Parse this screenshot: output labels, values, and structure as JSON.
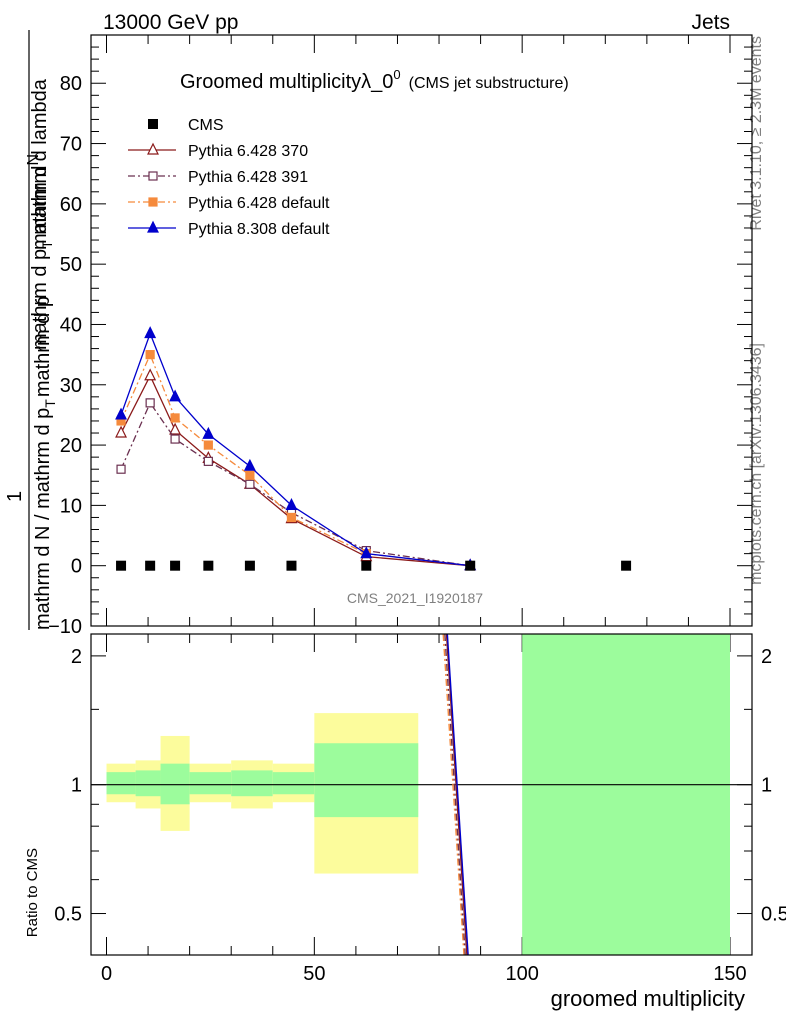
{
  "header": {
    "left": "13000 GeV pp",
    "right": "Jets"
  },
  "side": {
    "rivet": "Rivet 3.1.10, ≥ 2.3M events",
    "mcplots": "mcplots.cern.ch [arXiv:1306.3436]"
  },
  "chart_data": {
    "type": "line",
    "title": "Groomed multiplicity",
    "title_lambda": "λ_0",
    "title_sup": "0",
    "subtitle": "(CMS jet substructure)",
    "analysis_id": "CMS_2021_I1920187",
    "xlabel": "groomed multiplicity",
    "ylabel_num": "1",
    "ylabel_den": "mathrm d N / mathrm d p",
    "ylabel_den_sub": "T",
    "ylabel_den_tail": "mathrm d p",
    "ylabel_upper_text": "mathrm d",
    "ylabel_upper_end": "N",
    "ylabel_mid_text": "mathrm d p",
    "ylabel_mid_sub": "T",
    "ylabel_mid_tail": " mathrm d lambda",
    "ratio_ylabel": "Ratio to CMS",
    "xlim": [
      -3,
      150
    ],
    "ylim": [
      -10,
      88
    ],
    "ratio_ylim": [
      0.4,
      2.25
    ],
    "x_ticks": [
      "0",
      "50",
      "100",
      "150"
    ],
    "y_ticks": [
      "−10",
      "0",
      "10",
      "20",
      "30",
      "40",
      "50",
      "60",
      "70",
      "80"
    ],
    "ratio_ticks": [
      "0.5",
      "1",
      "2"
    ],
    "bins": [
      {
        "lo": 0,
        "hi": 7,
        "x": 3.5
      },
      {
        "lo": 7,
        "hi": 13,
        "x": 10.5
      },
      {
        "lo": 13,
        "hi": 20,
        "x": 16.5
      },
      {
        "lo": 20,
        "hi": 30,
        "x": 24.5
      },
      {
        "lo": 30,
        "hi": 40,
        "x": 34.5
      },
      {
        "lo": 40,
        "hi": 50,
        "x": 44.5
      },
      {
        "lo": 50,
        "hi": 75,
        "x": 62.5
      },
      {
        "lo": 75,
        "hi": 100,
        "x": 87.5
      },
      {
        "lo": 100,
        "hi": 150,
        "x": 125
      }
    ],
    "cms": {
      "name": "CMS",
      "color": "#000000",
      "values": [
        0,
        0,
        0,
        0,
        0,
        0,
        0,
        0,
        0
      ]
    },
    "series": [
      {
        "name": "Pythia 6.428 370",
        "color": "#8b1a1a",
        "marker": "triangle-open",
        "dash": "",
        "x": [
          3.5,
          10.5,
          16.5,
          24.5,
          34.5,
          44.5,
          62.5,
          87.5
        ],
        "values": [
          22,
          31.5,
          22.5,
          17.8,
          13.5,
          7.8,
          1.5,
          0
        ]
      },
      {
        "name": "Pythia 6.428 391",
        "color": "#6b3050",
        "marker": "square-open",
        "dash": "7,3,2,3",
        "x": [
          3.5,
          10.5,
          16.5,
          24.5,
          34.5,
          44.5,
          62.5,
          87.5
        ],
        "values": [
          16,
          27,
          21,
          17.3,
          13.5,
          8.8,
          2.5,
          0
        ]
      },
      {
        "name": "Pythia 6.428 default",
        "color": "#f58a3c",
        "marker": "square",
        "dash": "7,3,2,3",
        "x": [
          3.5,
          10.5,
          16.5,
          24.5,
          34.5,
          44.5,
          62.5,
          87.5
        ],
        "values": [
          24,
          35,
          24.5,
          20,
          15,
          8,
          2,
          0
        ]
      },
      {
        "name": "Pythia 8.308 default",
        "color": "#0000cc",
        "marker": "triangle",
        "dash": "",
        "x": [
          3.5,
          10.5,
          16.5,
          24.5,
          34.5,
          44.5,
          62.5,
          87.5
        ],
        "values": [
          25,
          38.5,
          28,
          21.8,
          16.5,
          10,
          2,
          0
        ]
      }
    ],
    "ratio_bands": {
      "inner_color": "#9cfc9c",
      "outer_color": "#fcfc9c",
      "inner": [
        [
          0.95,
          1.07
        ],
        [
          0.94,
          1.08
        ],
        [
          0.9,
          1.12
        ],
        [
          0.95,
          1.07
        ],
        [
          0.94,
          1.08
        ],
        [
          0.95,
          1.07
        ],
        [
          0.84,
          1.25
        ],
        null,
        [
          0.3,
          2.4
        ]
      ],
      "outer": [
        [
          0.91,
          1.12
        ],
        [
          0.88,
          1.14
        ],
        [
          0.78,
          1.3
        ],
        [
          0.91,
          1.12
        ],
        [
          0.88,
          1.14
        ],
        [
          0.91,
          1.12
        ],
        [
          0.62,
          1.47
        ],
        null,
        null
      ]
    },
    "ratio_lines": [
      {
        "name": "Pythia 6.428 370",
        "color": "#8b1a1a",
        "dash": "",
        "x": [
          81.8,
          86.7
        ],
        "values": [
          2.3,
          0.38
        ]
      },
      {
        "name": "Pythia 6.428 391",
        "color": "#6b3050",
        "dash": "7,3,2,3",
        "x": [
          81.4,
          86.3
        ],
        "values": [
          2.3,
          0.38
        ]
      },
      {
        "name": "Pythia 6.428 default",
        "color": "#f58a3c",
        "dash": "7,3,2,3",
        "x": [
          81.0,
          86.0
        ],
        "values": [
          2.3,
          0.38
        ]
      },
      {
        "name": "Pythia 8.308 default",
        "color": "#0000cc",
        "dash": "",
        "x": [
          82.0,
          87.0
        ],
        "values": [
          2.3,
          0.38
        ]
      }
    ]
  }
}
